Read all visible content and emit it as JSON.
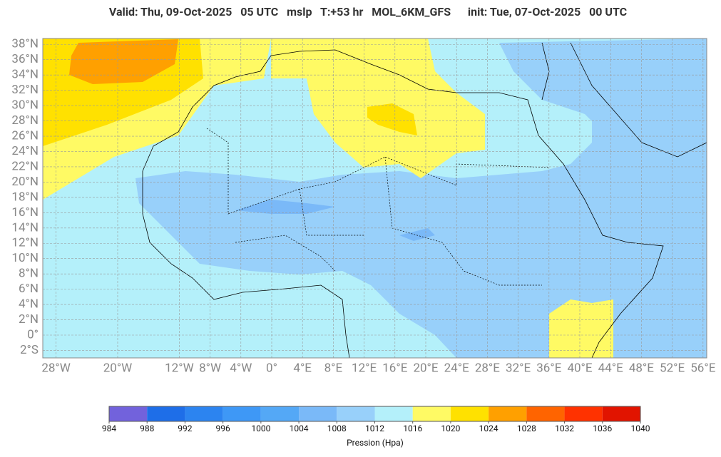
{
  "title": "Valid: Thu, 09-Oct-2025   05 UTC   mslp   T:+53 hr   MOL_6KM_GFS      init: Tue, 07-Oct-2025   00 UTC",
  "map": {
    "lat_labels": [
      {
        "value": 38,
        "label": "38°N"
      },
      {
        "value": 36,
        "label": "36°N"
      },
      {
        "value": 34,
        "label": "34°N"
      },
      {
        "value": 32,
        "label": "32°N"
      },
      {
        "value": 30,
        "label": "30°N"
      },
      {
        "value": 28,
        "label": "28°N"
      },
      {
        "value": 26,
        "label": "26°N"
      },
      {
        "value": 24,
        "label": "24°N"
      },
      {
        "value": 22,
        "label": "22°N"
      },
      {
        "value": 20,
        "label": "20°N"
      },
      {
        "value": 18,
        "label": "18°N"
      },
      {
        "value": 16,
        "label": "16°N"
      },
      {
        "value": 14,
        "label": "14°N"
      },
      {
        "value": 12,
        "label": "12°N"
      },
      {
        "value": 10,
        "label": "10°N"
      },
      {
        "value": 8,
        "label": "8°N"
      },
      {
        "value": 6,
        "label": "6°N"
      },
      {
        "value": 4,
        "label": "4°N"
      },
      {
        "value": 2,
        "label": "2°N"
      },
      {
        "value": 0,
        "label": "0°"
      },
      {
        "value": -2,
        "label": "2°S"
      }
    ],
    "lon_labels": [
      {
        "value": -28,
        "label": "28°W"
      },
      {
        "value": -20,
        "label": "20°W"
      },
      {
        "value": -12,
        "label": "12°W"
      },
      {
        "value": -8,
        "label": "8°W"
      },
      {
        "value": -4,
        "label": "4°W"
      },
      {
        "value": 0,
        "label": "0°"
      },
      {
        "value": 4,
        "label": "4°E"
      },
      {
        "value": 8,
        "label": "8°E"
      },
      {
        "value": 12,
        "label": "12°E"
      },
      {
        "value": 16,
        "label": "16°E"
      },
      {
        "value": 20,
        "label": "20°E"
      },
      {
        "value": 24,
        "label": "24°E"
      },
      {
        "value": 28,
        "label": "28°E"
      },
      {
        "value": 32,
        "label": "32°E"
      },
      {
        "value": 36,
        "label": "36°E"
      },
      {
        "value": 40,
        "label": "40°E"
      },
      {
        "value": 44,
        "label": "44°E"
      },
      {
        "value": 48,
        "label": "48°E"
      },
      {
        "value": 52,
        "label": "52°E"
      },
      {
        "value": 56,
        "label": "56°E"
      }
    ]
  },
  "colorbar": {
    "colors": [
      "#7262dc",
      "#1e6ee8",
      "#2c84f0",
      "#3e98f6",
      "#54a8f6",
      "#7ab9f8",
      "#98d0fa",
      "#b4f0fa",
      "#fffa64",
      "#ffe100",
      "#ffa000",
      "#ff6400",
      "#ff3200",
      "#e11400"
    ],
    "ticks": [
      984,
      988,
      992,
      996,
      1000,
      1004,
      1008,
      1012,
      1016,
      1020,
      1024,
      1028,
      1032,
      1036,
      1040
    ],
    "label": "Pression (Hpa)"
  }
}
